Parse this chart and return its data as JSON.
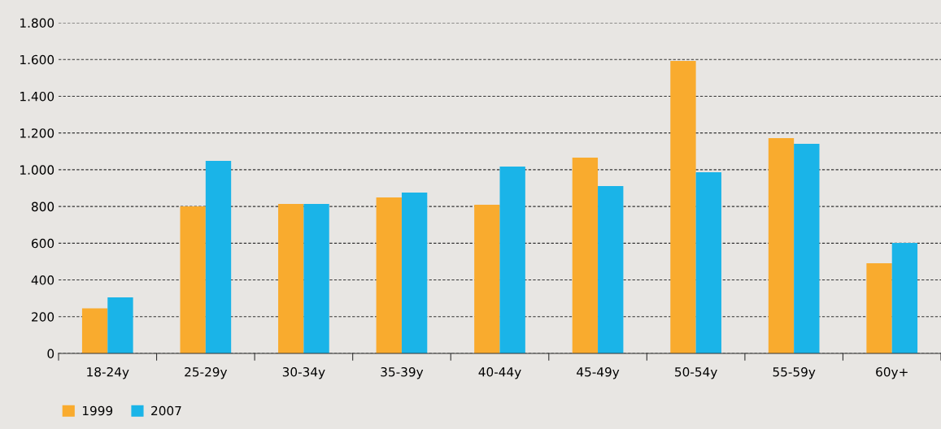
{
  "chart_data": {
    "type": "bar",
    "categories": [
      "18-24y",
      "25-29y",
      "30-34y",
      "35-39y",
      "40-44y",
      "45-49y",
      "50-54y",
      "55-59y",
      "60y+"
    ],
    "series": [
      {
        "name": "1999",
        "color": "#f9ab2e",
        "values": [
          245,
          800,
          814,
          849,
          809,
          1066,
          1592,
          1172,
          491
        ]
      },
      {
        "name": "2007",
        "color": "#1ab4e8",
        "values": [
          305,
          1048,
          814,
          876,
          1017,
          911,
          986,
          1141,
          601
        ]
      }
    ],
    "ylim": [
      0,
      1800
    ],
    "yticks": [
      0,
      200,
      400,
      600,
      800,
      {
        "value": 1000,
        "label": "1.000"
      },
      {
        "value": 1200,
        "label": "1.200"
      },
      {
        "value": 1400,
        "label": "1.400"
      },
      {
        "value": 1600,
        "label": "1.600"
      },
      {
        "value": 1800,
        "label": "1.800"
      }
    ],
    "grid": "y",
    "legend": "bottom left"
  }
}
